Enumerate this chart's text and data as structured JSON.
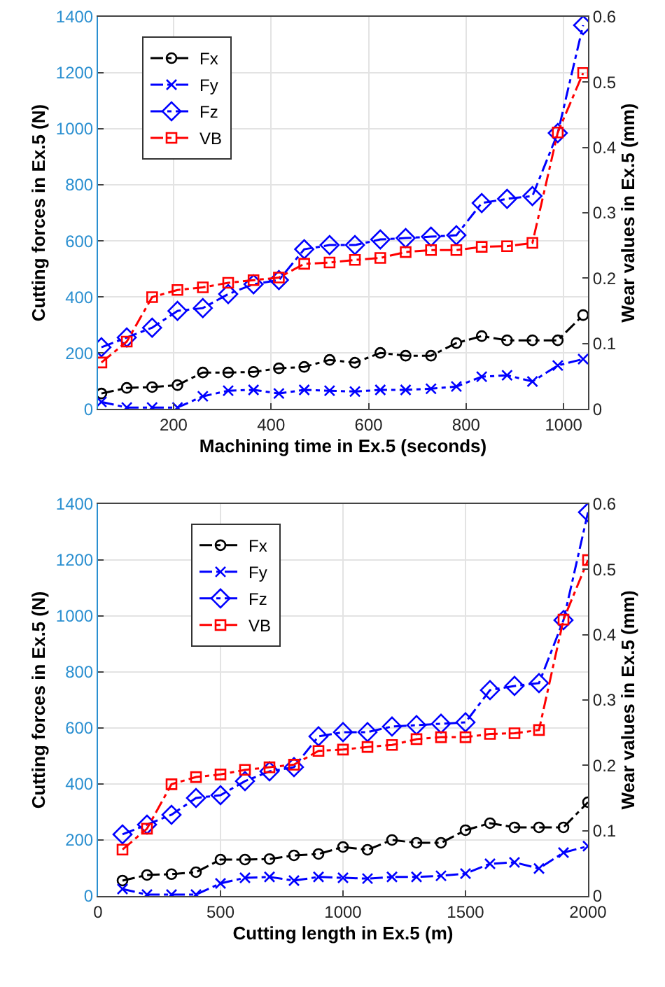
{
  "chart_data": [
    {
      "type": "line",
      "xlabel": "Machining time in Ex.5 (seconds)",
      "ylabel": "Cutting forces in Ex.5 (N)",
      "y2label": "Wear values in Ex.5 (mm)",
      "x": [
        52,
        104,
        156,
        208,
        260,
        312,
        364,
        416,
        468,
        520,
        572,
        624,
        676,
        728,
        780,
        832,
        884,
        936,
        988,
        1040
      ],
      "xlim": [
        45,
        1050
      ],
      "xticks": [
        200,
        400,
        600,
        800,
        1000
      ],
      "ylim": [
        0,
        1400
      ],
      "yticks": [
        0,
        200,
        400,
        600,
        800,
        1000,
        1200,
        1400
      ],
      "y2lim": [
        0,
        0.6
      ],
      "y2ticks": [
        0,
        0.1,
        0.2,
        0.3,
        0.4,
        0.5,
        0.6
      ],
      "grid": true,
      "legend": "top left",
      "line_style": "dashed",
      "series": [
        {
          "name": "Fx",
          "color": "#000000",
          "marker": "circle",
          "values": [
            55,
            75,
            78,
            85,
            130,
            130,
            132,
            145,
            150,
            175,
            165,
            200,
            190,
            190,
            235,
            260,
            245,
            245,
            245,
            335
          ]
        },
        {
          "name": "Fy",
          "color": "#0000ff",
          "marker": "cross",
          "values": [
            25,
            5,
            5,
            5,
            45,
            65,
            68,
            55,
            68,
            65,
            62,
            68,
            68,
            72,
            80,
            115,
            120,
            98,
            155,
            178
          ]
        },
        {
          "name": "Fz",
          "color": "#0000ff",
          "marker": "diamond",
          "values": [
            220,
            255,
            290,
            350,
            360,
            410,
            445,
            460,
            570,
            585,
            585,
            605,
            610,
            615,
            620,
            735,
            750,
            760,
            985,
            1370
          ]
        },
        {
          "name": "VB",
          "color": "#ff0000",
          "marker": "square",
          "axis": "y2",
          "values": [
            0.071,
            0.103,
            0.171,
            0.182,
            0.186,
            0.193,
            0.197,
            0.201,
            0.222,
            0.224,
            0.228,
            0.231,
            0.24,
            0.243,
            0.243,
            0.248,
            0.249,
            0.254,
            0.423,
            0.514
          ]
        }
      ]
    },
    {
      "type": "line",
      "xlabel": "Cutting length in Ex.5 (m)",
      "ylabel": "Cutting forces in Ex.5 (N)",
      "y2label": "Wear values in Ex.5 (mm)",
      "x": [
        100,
        200,
        300,
        400,
        500,
        600,
        700,
        800,
        900,
        1000,
        1100,
        1200,
        1300,
        1400,
        1500,
        1600,
        1700,
        1800,
        1900,
        2000
      ],
      "xlim": [
        0,
        2000
      ],
      "xticks": [
        0,
        500,
        1000,
        1500,
        2000
      ],
      "ylim": [
        0,
        1400
      ],
      "yticks": [
        0,
        200,
        400,
        600,
        800,
        1000,
        1200,
        1400
      ],
      "y2lim": [
        0,
        0.6
      ],
      "y2ticks": [
        0,
        0.1,
        0.2,
        0.3,
        0.4,
        0.5,
        0.6
      ],
      "grid": true,
      "legend": "top left",
      "line_style": "dashed",
      "series": [
        {
          "name": "Fx",
          "color": "#000000",
          "marker": "circle",
          "values": [
            55,
            75,
            78,
            85,
            130,
            130,
            132,
            145,
            150,
            175,
            165,
            200,
            190,
            190,
            235,
            260,
            245,
            245,
            245,
            335
          ]
        },
        {
          "name": "Fy",
          "color": "#0000ff",
          "marker": "cross",
          "values": [
            25,
            5,
            5,
            5,
            45,
            65,
            68,
            55,
            68,
            65,
            62,
            68,
            68,
            72,
            80,
            115,
            120,
            98,
            155,
            178
          ]
        },
        {
          "name": "Fz",
          "color": "#0000ff",
          "marker": "diamond",
          "values": [
            220,
            255,
            290,
            350,
            360,
            410,
            445,
            460,
            570,
            585,
            585,
            605,
            610,
            615,
            620,
            735,
            750,
            760,
            985,
            1370
          ]
        },
        {
          "name": "VB",
          "color": "#ff0000",
          "marker": "square",
          "axis": "y2",
          "values": [
            0.071,
            0.103,
            0.171,
            0.182,
            0.186,
            0.193,
            0.197,
            0.201,
            0.222,
            0.224,
            0.228,
            0.231,
            0.24,
            0.243,
            0.243,
            0.248,
            0.249,
            0.254,
            0.423,
            0.514
          ]
        }
      ]
    }
  ]
}
